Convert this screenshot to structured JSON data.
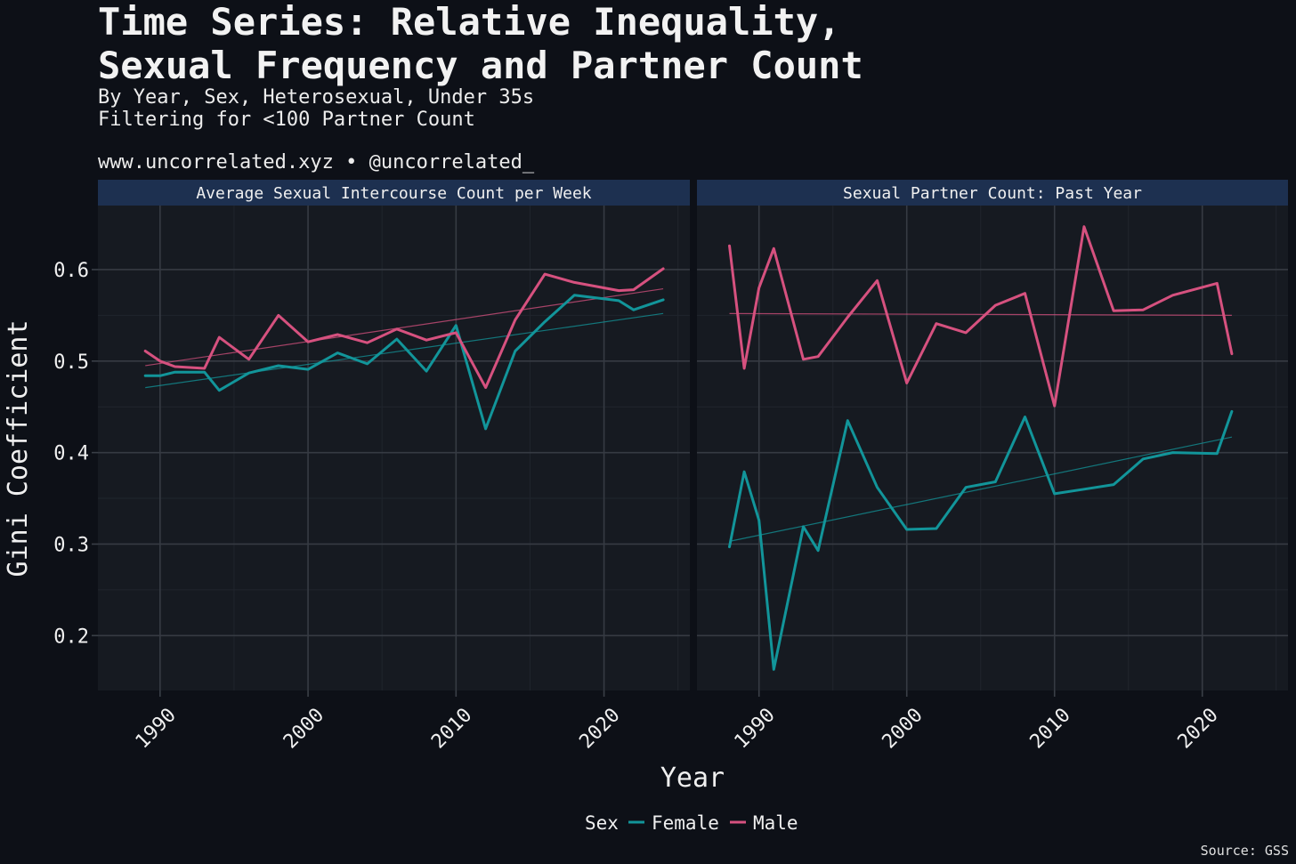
{
  "title": "Time Series: Relative Inequality,\nSexual Frequency and Partner Count",
  "subtitle": "By Year, Sex, Heterosexual, Under 35s\nFiltering for <100 Partner Count",
  "credit": "www.uncorrelated.xyz • @uncorrelated_",
  "source": "Source: GSS",
  "colors": {
    "Female": "#12959a",
    "Male": "#d6517f",
    "background": "#0d1017",
    "panel": "#161a21",
    "strip": "#1d3050"
  },
  "chart_data": {
    "type": "line",
    "xlabel": "Year",
    "ylabel": "Gini Coefficient",
    "ylim": [
      0.14,
      0.67
    ],
    "yticks": [
      0.2,
      0.3,
      0.4,
      0.5,
      0.6
    ],
    "ytick_labels": [
      "0.2",
      "0.3",
      "0.4",
      "0.5",
      "0.6"
    ],
    "xticks": [
      1990,
      2000,
      2010,
      2020
    ],
    "xtick_labels": [
      "1990",
      "2000",
      "2010",
      "2020"
    ],
    "legend": {
      "title": "Sex",
      "position": "bottom",
      "entries": [
        "Female",
        "Male"
      ]
    },
    "panels": [
      {
        "strip": "Average Sexual Intercourse Count per Week",
        "xlim": [
          1985.8,
          2025.8
        ],
        "series": [
          {
            "name": "Female",
            "x": [
              1989,
              1990,
              1991,
              1993,
              1994,
              1996,
              1998,
              2000,
              2002,
              2004,
              2006,
              2008,
              2010,
              2012,
              2014,
              2016,
              2018,
              2021,
              2022,
              2024
            ],
            "y": [
              0.484,
              0.484,
              0.488,
              0.488,
              0.468,
              0.487,
              0.495,
              0.491,
              0.509,
              0.497,
              0.524,
              0.489,
              0.539,
              0.426,
              0.511,
              0.543,
              0.572,
              0.566,
              0.556,
              0.567
            ],
            "trend": [
              [
                1989,
                0.471
              ],
              [
                2024,
                0.552
              ]
            ]
          },
          {
            "name": "Male",
            "x": [
              1989,
              1990,
              1991,
              1993,
              1994,
              1996,
              1998,
              2000,
              2002,
              2004,
              2006,
              2008,
              2010,
              2012,
              2014,
              2016,
              2018,
              2021,
              2022,
              2024
            ],
            "y": [
              0.511,
              0.5,
              0.494,
              0.492,
              0.526,
              0.502,
              0.55,
              0.521,
              0.529,
              0.52,
              0.535,
              0.523,
              0.531,
              0.471,
              0.545,
              0.595,
              0.586,
              0.577,
              0.578,
              0.601
            ],
            "trend": [
              [
                1989,
                0.495
              ],
              [
                2024,
                0.579
              ]
            ]
          }
        ]
      },
      {
        "strip": "Sexual Partner Count: Past Year",
        "xlim": [
          1985.8,
          2025.8
        ],
        "series": [
          {
            "name": "Female",
            "x": [
              1988,
              1989,
              1990,
              1991,
              1993,
              1994,
              1996,
              1998,
              2000,
              2002,
              2004,
              2006,
              2008,
              2010,
              2012,
              2014,
              2016,
              2018,
              2021,
              2022
            ],
            "y": [
              0.297,
              0.379,
              0.326,
              0.163,
              0.319,
              0.293,
              0.435,
              0.362,
              0.316,
              0.317,
              0.362,
              0.368,
              0.439,
              0.355,
              0.36,
              0.365,
              0.393,
              0.4,
              0.399,
              0.445
            ],
            "trend": [
              [
                1988,
                0.303
              ],
              [
                2022,
                0.417
              ]
            ]
          },
          {
            "name": "Male",
            "x": [
              1988,
              1989,
              1990,
              1991,
              1993,
              1994,
              1996,
              1998,
              2000,
              2002,
              2004,
              2006,
              2008,
              2010,
              2012,
              2014,
              2016,
              2018,
              2021,
              2022
            ],
            "y": [
              0.626,
              0.492,
              0.58,
              0.623,
              0.502,
              0.505,
              0.548,
              0.588,
              0.476,
              0.541,
              0.531,
              0.561,
              0.574,
              0.451,
              0.647,
              0.555,
              0.556,
              0.572,
              0.585,
              0.508
            ],
            "trend": [
              [
                1988,
                0.552
              ],
              [
                2022,
                0.55
              ]
            ]
          }
        ]
      }
    ]
  }
}
